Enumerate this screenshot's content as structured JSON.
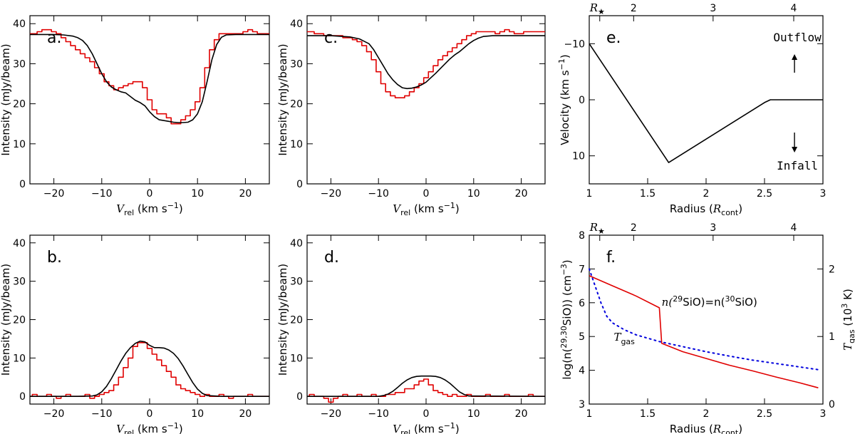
{
  "colors": {
    "obs": "#e00000",
    "model": "#000000",
    "tgas": "#0000dd",
    "axis": "#000000"
  },
  "chart_data": [
    {
      "id": "a",
      "type": "line",
      "panel_label": "a.",
      "xlabel": "V",
      "xlabel_sub": "rel",
      "xlabel_unit": "(km s",
      "xlabel_unit_sup": "−1",
      "xlabel_close": ")",
      "ylabel": "Intensity (mJy/beam)",
      "xlim": [
        -25,
        25
      ],
      "ylim": [
        0,
        42
      ],
      "xticks": [
        -20,
        -10,
        0,
        10,
        20
      ],
      "yticks": [
        0,
        10,
        20,
        30,
        40
      ],
      "series": [
        {
          "kind": "step",
          "role": "obs",
          "x": [
            -25,
            -24,
            -23,
            -22,
            -21,
            -20,
            -19,
            -18,
            -17,
            -16,
            -15,
            -14,
            -13,
            -12,
            -11,
            -10,
            -9,
            -8,
            -7,
            -6,
            -5,
            -4,
            -3,
            -2,
            -1,
            0,
            1,
            2,
            3,
            4,
            5,
            6,
            7,
            8,
            9,
            10,
            11,
            12,
            13,
            14,
            15,
            16,
            17,
            18,
            19,
            20,
            21,
            22,
            23,
            24,
            25
          ],
          "y": [
            37.5,
            37.5,
            38,
            38.5,
            38.5,
            38,
            37.5,
            36.5,
            35.5,
            34.5,
            33.5,
            32.5,
            31.5,
            30.5,
            29,
            27.5,
            25.5,
            24.5,
            23.5,
            24,
            24.5,
            25,
            25.5,
            25.5,
            24,
            21,
            18.5,
            17.5,
            17.5,
            16.5,
            15,
            15,
            16,
            17,
            18.5,
            20.5,
            24,
            29,
            33.5,
            36,
            37.5,
            37.5,
            37.5,
            37.5,
            37.5,
            38,
            38.5,
            38,
            37.5,
            37.5,
            37.5
          ]
        },
        {
          "kind": "line",
          "role": "model",
          "x": [
            -25,
            -22,
            -20,
            -18,
            -16,
            -15,
            -14,
            -13,
            -12,
            -11,
            -10,
            -9,
            -8,
            -7,
            -6,
            -5,
            -4,
            -3,
            -2,
            -1,
            0,
            1,
            2,
            3,
            4,
            5,
            6,
            7,
            8,
            9,
            10,
            11,
            12,
            13,
            14,
            15,
            16,
            18,
            20,
            22,
            25
          ],
          "y": [
            37.3,
            37.3,
            37.3,
            37.2,
            36.9,
            36.5,
            35.8,
            34.5,
            32.5,
            30,
            27.5,
            25.5,
            24.2,
            23.5,
            23,
            22.7,
            21.8,
            20.9,
            20.3,
            19.5,
            18,
            16.8,
            16,
            15.8,
            15.6,
            15.4,
            15.3,
            15.3,
            15.4,
            16,
            17.5,
            20.5,
            25.5,
            31,
            34.8,
            36.6,
            37.2,
            37.3,
            37.3,
            37.3,
            37.3
          ]
        }
      ]
    },
    {
      "id": "c",
      "type": "line",
      "panel_label": "c.",
      "xlabel": "V",
      "xlabel_sub": "rel",
      "xlabel_unit": "(km s",
      "xlabel_unit_sup": "−1",
      "xlabel_close": ")",
      "ylabel": "Intensity (mJy/beam)",
      "xlim": [
        -25,
        25
      ],
      "ylim": [
        0,
        42
      ],
      "xticks": [
        -20,
        -10,
        0,
        10,
        20
      ],
      "yticks": [
        0,
        10,
        20,
        30,
        40
      ],
      "series": [
        {
          "kind": "step",
          "role": "obs",
          "x": [
            -25,
            -24,
            -23,
            -22,
            -21,
            -20,
            -19,
            -18,
            -17,
            -16,
            -15,
            -14,
            -13,
            -12,
            -11,
            -10,
            -9,
            -8,
            -7,
            -6,
            -5,
            -4,
            -3,
            -2,
            -1,
            0,
            1,
            2,
            3,
            4,
            5,
            6,
            7,
            8,
            9,
            10,
            11,
            12,
            13,
            14,
            15,
            16,
            17,
            18,
            19,
            20,
            21,
            22,
            23,
            24,
            25
          ],
          "y": [
            38,
            38,
            37.5,
            37.5,
            37,
            37,
            37,
            37,
            36.5,
            36.5,
            36,
            35.5,
            34.5,
            33,
            31,
            28,
            25,
            23,
            22,
            21.5,
            21.5,
            22,
            23,
            24,
            25,
            26.5,
            28,
            29.5,
            31,
            32,
            33,
            34,
            35,
            36,
            37,
            37.5,
            38,
            38,
            38,
            38,
            37.5,
            38,
            38.5,
            38,
            37.5,
            37.5,
            38,
            38,
            38,
            38,
            38
          ]
        },
        {
          "kind": "line",
          "role": "model",
          "x": [
            -25,
            -20,
            -16,
            -14,
            -12,
            -11,
            -10,
            -9,
            -8,
            -7,
            -6,
            -5,
            -4,
            -3,
            -2,
            -1,
            0,
            1,
            2,
            3,
            4,
            5,
            6,
            7,
            8,
            9,
            10,
            11,
            12,
            14,
            16,
            20,
            25
          ],
          "y": [
            37,
            37,
            36.7,
            36.2,
            35,
            33.5,
            31.5,
            29.5,
            27.5,
            26,
            24.8,
            24,
            23.8,
            23.9,
            24.2,
            24.7,
            25.4,
            26.5,
            27.6,
            28.8,
            30,
            31.2,
            32.2,
            33,
            34,
            35,
            35.8,
            36.4,
            36.8,
            37,
            37,
            37,
            37
          ]
        }
      ]
    },
    {
      "id": "e",
      "type": "line",
      "panel_label": "e.",
      "xlabel": "Radius (",
      "xlabel_it": "R",
      "xlabel_sub": "cont",
      "xlabel_close": ")",
      "ylabel": "Velocity (km s",
      "ylabel_sup": "−1",
      "ylabel_close": ")",
      "xlim": [
        1,
        3
      ],
      "ylim": [
        15,
        -15
      ],
      "invert_y": true,
      "xticks": [
        1,
        1.5,
        2,
        2.5,
        3
      ],
      "yticks": [
        -10,
        0,
        10
      ],
      "top_axis_label": "R",
      "top_axis_ticks": [
        2,
        3,
        4
      ],
      "top_axis_star": "★",
      "annotations": [
        "Outflow",
        "Infall"
      ],
      "series": [
        {
          "kind": "line",
          "role": "model",
          "x": [
            1,
            1.68,
            2.5,
            2.55,
            3
          ],
          "y": [
            -10,
            11.2,
            0.5,
            0,
            0
          ]
        }
      ]
    },
    {
      "id": "b",
      "type": "line",
      "panel_label": "b.",
      "xlabel": "V",
      "xlabel_sub": "rel",
      "xlabel_unit": "(km s",
      "xlabel_unit_sup": "−1",
      "xlabel_close": ")",
      "ylabel": "Intensity (mJy/beam)",
      "xlim": [
        -25,
        25
      ],
      "ylim": [
        -2,
        42
      ],
      "xticks": [
        -20,
        -10,
        0,
        10,
        20
      ],
      "yticks": [
        0,
        10,
        20,
        30,
        40
      ],
      "series": [
        {
          "kind": "step",
          "role": "obs",
          "x": [
            -25,
            -24,
            -23,
            -22,
            -21,
            -20,
            -19,
            -18,
            -17,
            -16,
            -15,
            -14,
            -13,
            -12,
            -11,
            -10,
            -9,
            -8,
            -7,
            -6,
            -5,
            -4,
            -3,
            -2,
            -1,
            0,
            1,
            2,
            3,
            4,
            5,
            6,
            7,
            8,
            9,
            10,
            11,
            12,
            13,
            14,
            15,
            16,
            17,
            18,
            19,
            20,
            21,
            22,
            23,
            24,
            25
          ],
          "y": [
            0,
            0.5,
            0,
            0,
            0.5,
            0,
            -0.5,
            0,
            0.5,
            0,
            0,
            0,
            0.5,
            -0.5,
            0,
            0.5,
            1,
            1.5,
            3,
            5,
            7.5,
            10,
            13,
            14,
            14,
            12.5,
            11,
            9.5,
            8,
            6.5,
            5,
            3,
            2,
            1.5,
            1,
            0.5,
            0,
            0.5,
            0,
            0,
            0.5,
            0,
            -0.5,
            0,
            0,
            0,
            0.5,
            0,
            0,
            0,
            0
          ]
        },
        {
          "kind": "line",
          "role": "model",
          "x": [
            -25,
            -15,
            -12,
            -11,
            -10,
            -9,
            -8,
            -7,
            -6,
            -5,
            -4,
            -3,
            -2,
            -1,
            0,
            1,
            2,
            3,
            4,
            5,
            6,
            7,
            8,
            9,
            10,
            11,
            12,
            15,
            25
          ],
          "y": [
            0,
            0,
            0.1,
            0.4,
            1.2,
            2.6,
            4.6,
            6.9,
            9.2,
            11.2,
            12.7,
            13.8,
            14.4,
            14.2,
            13.3,
            12.7,
            12.7,
            12.6,
            12.1,
            11.2,
            9.8,
            7.9,
            5.7,
            3.6,
            1.9,
            0.8,
            0.2,
            0,
            0
          ]
        }
      ]
    },
    {
      "id": "d",
      "type": "line",
      "panel_label": "d.",
      "xlabel": "V",
      "xlabel_sub": "rel",
      "xlabel_unit": "(km s",
      "xlabel_unit_sup": "−1",
      "xlabel_close": ")",
      "ylabel": "Intensity (mJy/beam)",
      "xlim": [
        -25,
        25
      ],
      "ylim": [
        -2,
        42
      ],
      "xticks": [
        -20,
        -10,
        0,
        10,
        20
      ],
      "yticks": [
        0,
        10,
        20,
        30,
        40
      ],
      "series": [
        {
          "kind": "step",
          "role": "obs",
          "x": [
            -25,
            -24,
            -23,
            -22,
            -21,
            -20,
            -19,
            -18,
            -17,
            -16,
            -15,
            -14,
            -13,
            -12,
            -11,
            -10,
            -9,
            -8,
            -7,
            -6,
            -5,
            -4,
            -3,
            -2,
            -1,
            0,
            1,
            2,
            3,
            4,
            5,
            6,
            7,
            8,
            9,
            10,
            11,
            12,
            13,
            14,
            15,
            16,
            17,
            18,
            19,
            20,
            21,
            22,
            23,
            24,
            25
          ],
          "y": [
            0,
            0.5,
            0,
            0,
            -0.5,
            -1.5,
            -0.5,
            0,
            0.5,
            0,
            0,
            0.5,
            0,
            0,
            0.5,
            0,
            0,
            0.5,
            0.5,
            1,
            1,
            2,
            2,
            3,
            4,
            4.5,
            3,
            1.5,
            1,
            0.5,
            0,
            0.5,
            0,
            0,
            0.5,
            0,
            0,
            0,
            0.5,
            0,
            0,
            0,
            0.5,
            0,
            0,
            0,
            0,
            0.5,
            0,
            0,
            0
          ]
        },
        {
          "kind": "line",
          "role": "model",
          "x": [
            -25,
            -10,
            -9,
            -8,
            -7,
            -6,
            -5,
            -4,
            -3,
            -2,
            -1,
            0,
            1,
            2,
            3,
            4,
            5,
            6,
            7,
            8,
            9,
            25
          ],
          "y": [
            0,
            0,
            0.2,
            0.6,
            1.3,
            2.3,
            3.4,
            4.3,
            4.9,
            5.2,
            5.3,
            5.3,
            5.3,
            5.2,
            4.9,
            4.3,
            3.4,
            2.3,
            1.2,
            0.5,
            0.1,
            0
          ]
        }
      ]
    },
    {
      "id": "f",
      "type": "line",
      "panel_label": "f.",
      "xlabel": "Radius (",
      "xlabel_it": "R",
      "xlabel_sub": "cont",
      "xlabel_close": ")",
      "ylabel": "log(n(",
      "ylabel_sup": "29,30",
      "ylabel_mid": "SiO)) (cm",
      "ylabel_sup2": "−3",
      "ylabel_close": ")",
      "right_ylabel": "T",
      "right_ylabel_sub": "gas",
      "right_ylabel_unit": "(10",
      "right_ylabel_sup": "3",
      "right_ylabel_close": " K)",
      "xlim": [
        1,
        3
      ],
      "ylim": [
        3,
        8
      ],
      "xticks": [
        1,
        1.5,
        2,
        2.5,
        3
      ],
      "yticks": [
        3,
        4,
        5,
        6,
        7,
        8
      ],
      "right_ylim": [
        0,
        2.5
      ],
      "right_yticks": [
        0,
        1,
        2
      ],
      "top_axis_label": "R",
      "top_axis_ticks": [
        2,
        3,
        4
      ],
      "top_axis_star": "★",
      "label_n": "n(",
      "label_n_sup1": "29",
      "label_n_mid": "SiO)=n(",
      "label_n_sup2": "30",
      "label_n_end": "SiO)",
      "label_t": "T",
      "label_t_sub": "gas",
      "series": [
        {
          "kind": "line",
          "role": "obs",
          "name": "n(29SiO)=n(30SiO)",
          "x": [
            1,
            1.2,
            1.4,
            1.6,
            1.62,
            1.8,
            2.0,
            2.2,
            2.4,
            2.6,
            2.8,
            2.96
          ],
          "y": [
            6.8,
            6.5,
            6.2,
            5.85,
            4.8,
            4.55,
            4.35,
            4.15,
            3.98,
            3.8,
            3.63,
            3.48
          ]
        },
        {
          "kind": "dotted",
          "role": "tgas",
          "name": "Tgas",
          "x": [
            1,
            1.05,
            1.1,
            1.15,
            1.2,
            1.3,
            1.4,
            1.6,
            1.8,
            2.0,
            2.2,
            2.4,
            2.6,
            2.8,
            2.96
          ],
          "y": [
            7.0,
            6.5,
            6.0,
            5.6,
            5.4,
            5.2,
            5.05,
            4.85,
            4.7,
            4.55,
            4.42,
            4.3,
            4.2,
            4.1,
            4.02
          ]
        }
      ]
    }
  ]
}
